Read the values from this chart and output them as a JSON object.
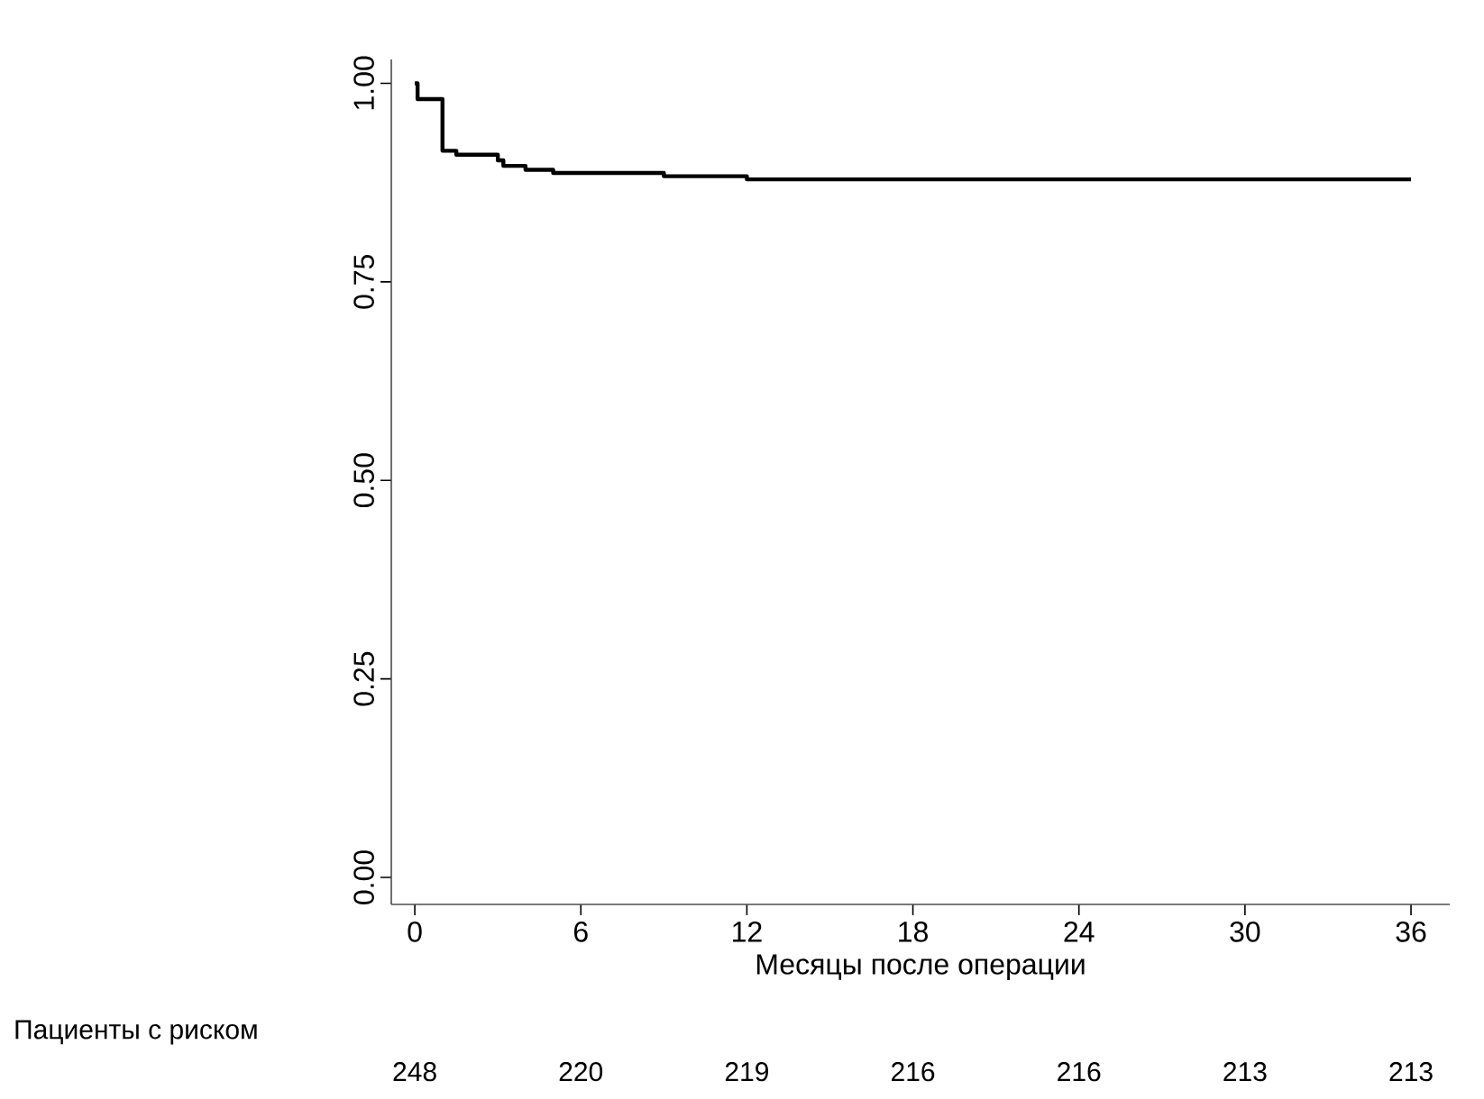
{
  "chart_data": {
    "type": "step",
    "xlabel": "Месяцы после операции",
    "x": [
      0,
      0.1,
      1,
      1.5,
      3,
      3.2,
      4,
      5,
      9,
      12,
      36
    ],
    "values": [
      1,
      0.98,
      0.915,
      0.91,
      0.903,
      0.896,
      0.891,
      0.887,
      0.883,
      0.879,
      0.879
    ],
    "color": "#000000",
    "xlim": [
      -0.85,
      37.4
    ],
    "ylim": [
      -0.034,
      1.03
    ],
    "xticks": [
      0,
      6,
      12,
      18,
      24,
      30,
      36
    ],
    "yticks": [
      {
        "value": 0,
        "label": "0.00"
      },
      {
        "value": 0.25,
        "label": "0.25"
      },
      {
        "value": 0.5,
        "label": "0.50"
      },
      {
        "value": 0.75,
        "label": "0.75"
      },
      {
        "value": 1,
        "label": "1.00"
      }
    ],
    "annotations": [
      "Пациенты с риском",
      "248",
      "220",
      "219",
      "216",
      "216",
      "213",
      "213"
    ]
  }
}
